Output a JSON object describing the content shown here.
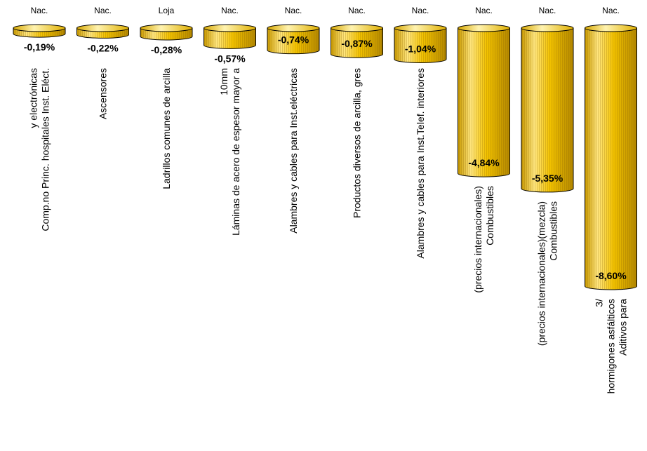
{
  "chart_data": {
    "type": "bar",
    "orientation": "vertical-downward",
    "colors": {
      "bar": "#f2c200",
      "bar_light": "#fff0a0",
      "bar_dark": "#b08800",
      "outline": "#000000"
    },
    "categories": [
      "Comp.no Princ. hospitales Inst. Eléct. y electrónicas",
      "Ascensores",
      "Ladrillos comunes de arcilla",
      "Láminas de acero de espesor mayor a 10mm",
      "Alambres y cables para Inst.eléctricas",
      "Productos diversos de arcilla, gres",
      "Alambres y cables para Inst.Telef. interiores",
      "Combustibles (precios internacionales)",
      "Combustibles (precios internacionales)(mezcla)",
      "Aditivos para hormigones asfálticos 3/"
    ],
    "category_lines": [
      [
        "Comp.no Princ.  hospitales Inst. Eléct.",
        "y electrónicas"
      ],
      [
        "Ascensores"
      ],
      [
        "Ladrillos comunes de arcilla"
      ],
      [
        "Láminas de acero de espesor mayor a",
        "10mm"
      ],
      [
        "Alambres y cables para Inst.eléctricas"
      ],
      [
        "Productos diversos de arcilla, gres"
      ],
      [
        "Alambres y cables para Inst.Telef. interiores"
      ],
      [
        "Combustibles",
        "(precios internacionales)"
      ],
      [
        "Combustibles",
        "(precios internacionales)(mezcla)"
      ],
      [
        "Aditivos para",
        "hormigones asfálticos",
        "3/"
      ]
    ],
    "regions": [
      "Nac.",
      "Nac.",
      "Loja",
      "Nac.",
      "Nac.",
      "Nac.",
      "Nac.",
      "Nac.",
      "Nac.",
      "Nac."
    ],
    "values": [
      -0.19,
      -0.22,
      -0.28,
      -0.57,
      -0.74,
      -0.87,
      -1.04,
      -4.84,
      -5.35,
      -8.6
    ],
    "value_labels": [
      "-0,19%",
      "-0,22%",
      "-0,28%",
      "-0,57%",
      "-0,74%",
      "-0,87%",
      "-1,04%",
      "-4,84%",
      "-5,35%",
      "-8,60%"
    ],
    "ylim": [
      -8.6,
      0
    ]
  }
}
